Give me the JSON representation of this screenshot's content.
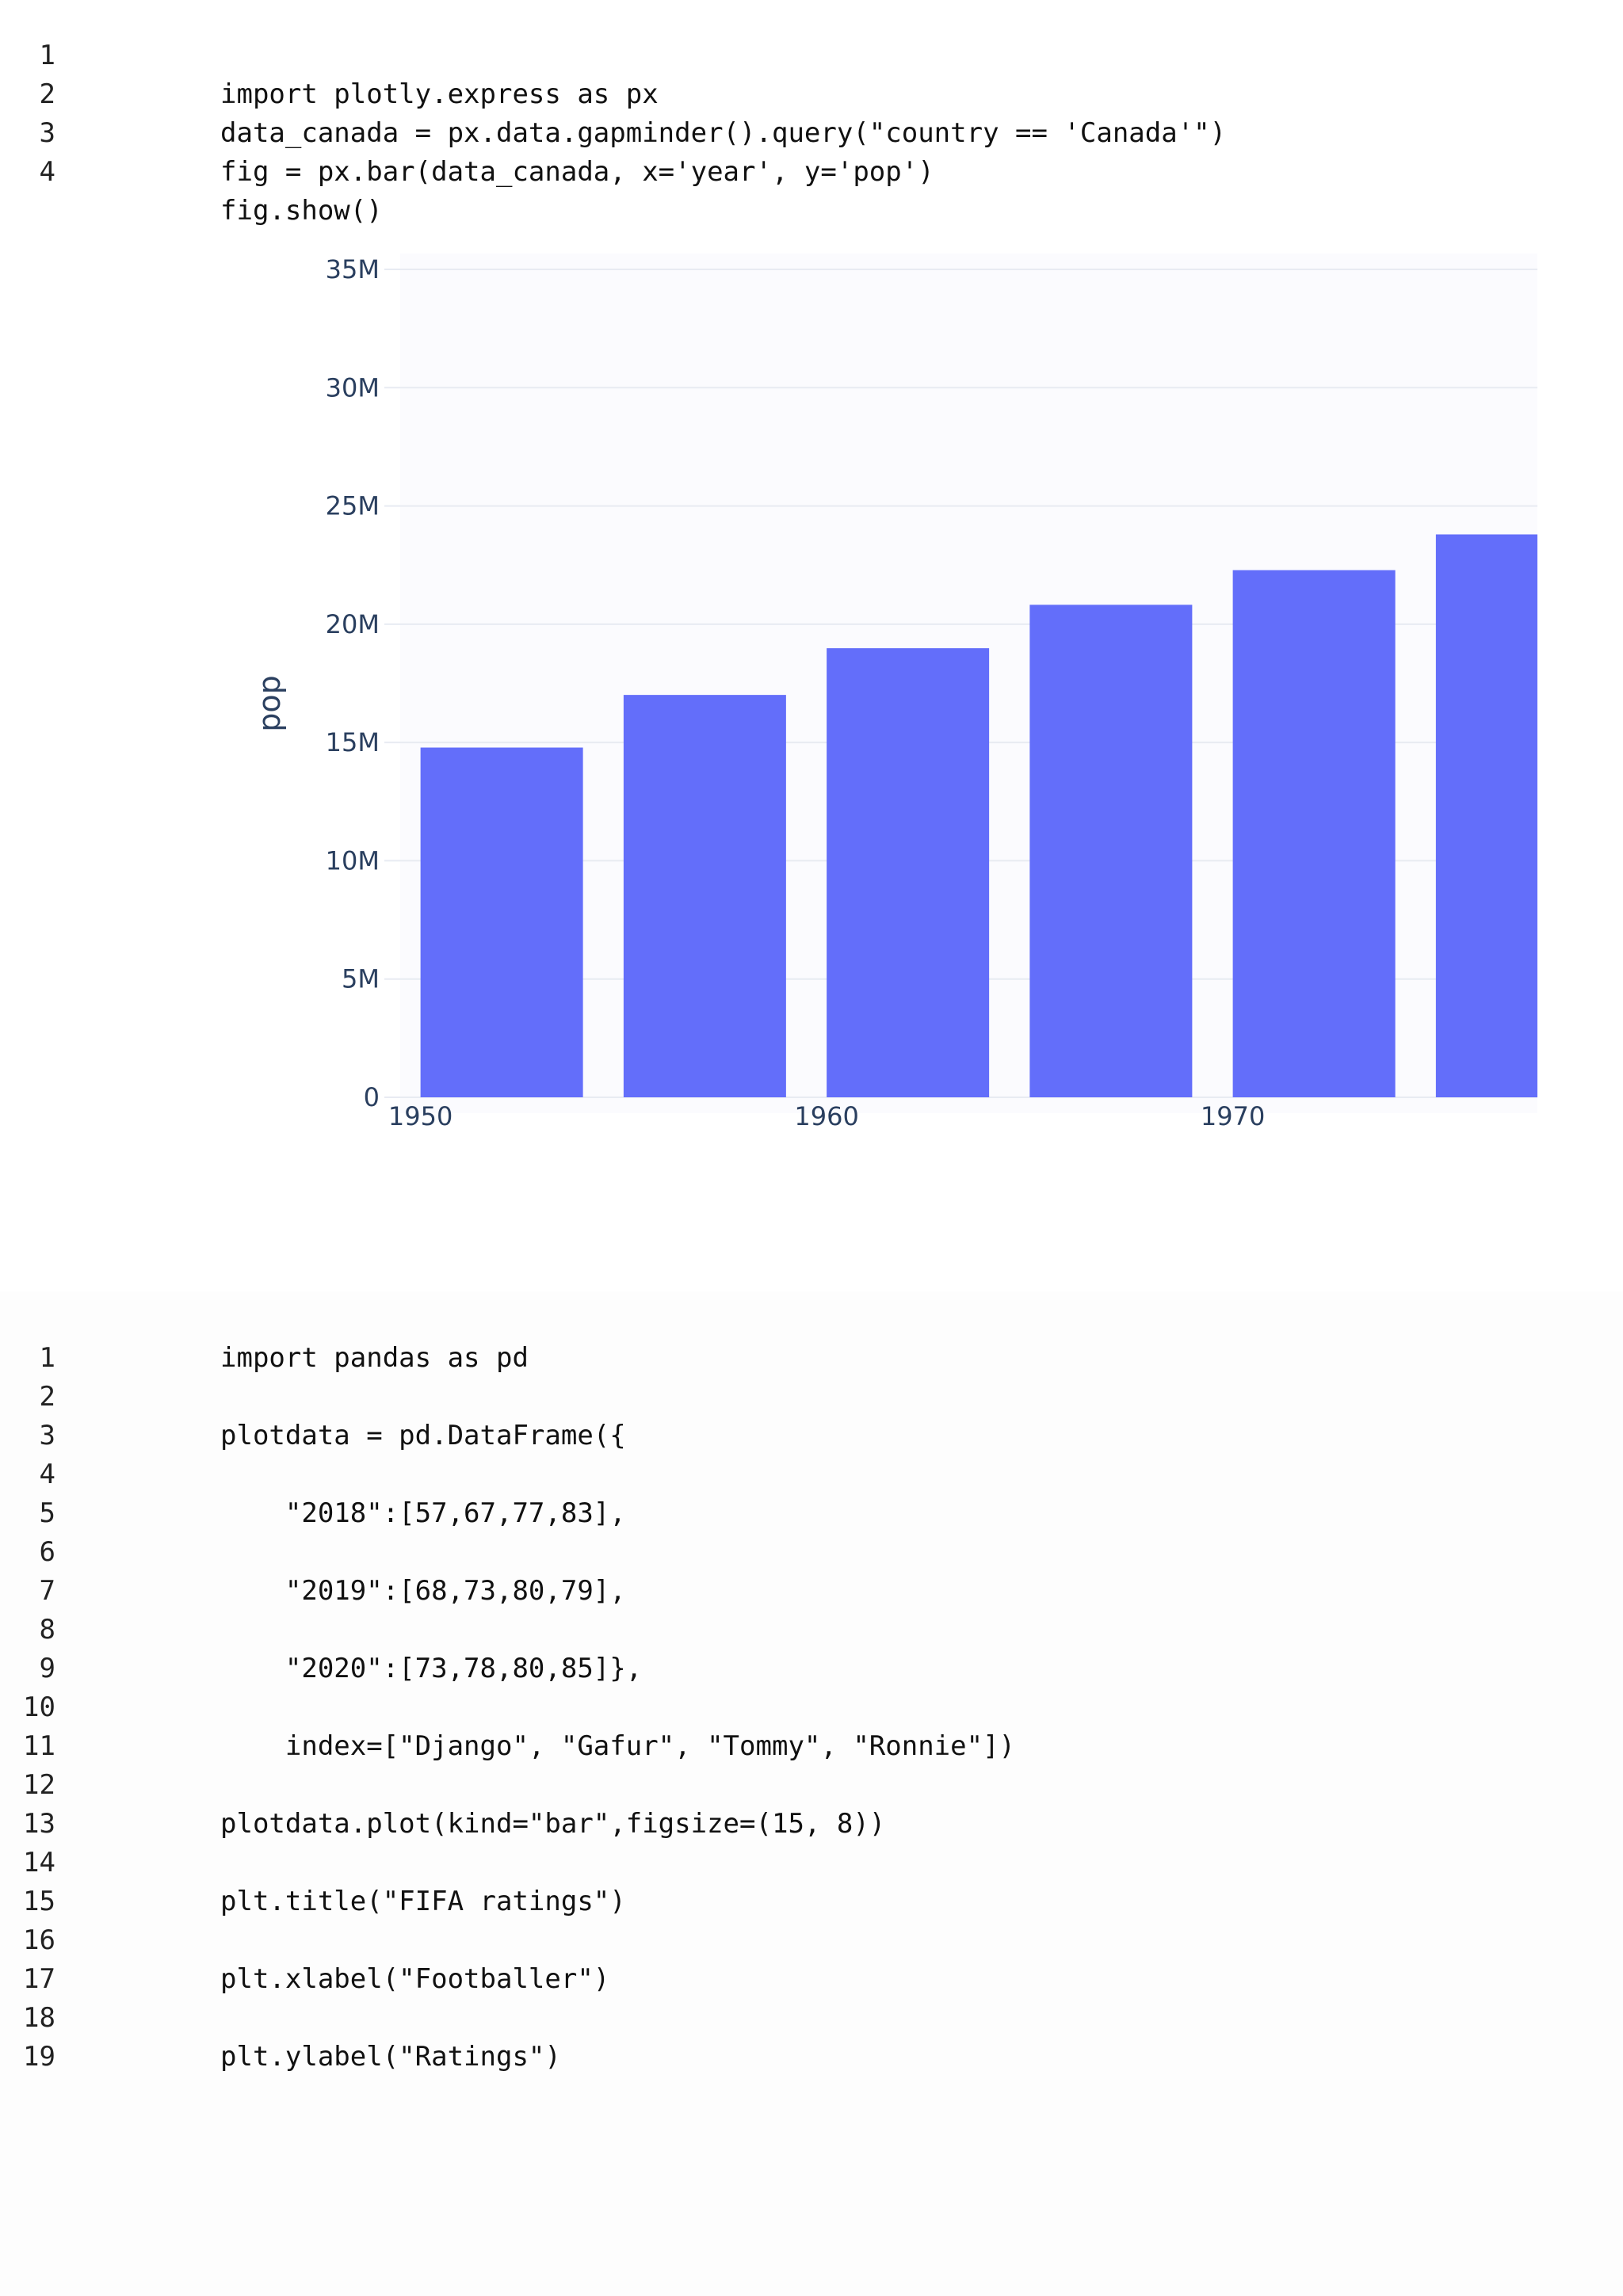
{
  "code_block_1": {
    "lines": [
      {
        "no": "1",
        "text": "import plotly.express as px"
      },
      {
        "no": "2",
        "text": "data_canada = px.data.gapminder().query(\"country == 'Canada'\")"
      },
      {
        "no": "3",
        "text": "fig = px.bar(data_canada, x='year', y='pop')"
      },
      {
        "no": "4",
        "text": "fig.show()"
      }
    ]
  },
  "chart_data": {
    "type": "bar",
    "ylabel": "pop",
    "xlabel": "",
    "categories": [
      1952,
      1957,
      1962,
      1967,
      1972,
      1977
    ],
    "values": [
      14785584,
      17010154,
      18985849,
      20819767,
      22284500,
      23796400
    ],
    "ylim": [
      0,
      35000000
    ],
    "xlim": [
      1949.5,
      1977.5
    ],
    "x_ticks": [
      {
        "value": 1950,
        "label": "1950"
      },
      {
        "value": 1960,
        "label": "1960"
      },
      {
        "value": 1970,
        "label": "1970"
      }
    ],
    "y_ticks": [
      {
        "value": 0,
        "label": "0"
      },
      {
        "value": 5000000,
        "label": "5M"
      },
      {
        "value": 10000000,
        "label": "10M"
      },
      {
        "value": 15000000,
        "label": "15M"
      },
      {
        "value": 20000000,
        "label": "20M"
      },
      {
        "value": 25000000,
        "label": "25M"
      },
      {
        "value": 30000000,
        "label": "30M"
      },
      {
        "value": 35000000,
        "label": "35M"
      }
    ],
    "grid": true,
    "bar_color": "#636efa",
    "plot_bg": "#fbfbfe",
    "grid_color": "#e8ebf2",
    "label_color": "#2a3f5f"
  },
  "code_block_2": {
    "lines": [
      {
        "no": "1",
        "text": "import pandas as pd"
      },
      {
        "no": "2",
        "text": ""
      },
      {
        "no": "3",
        "text": "plotdata = pd.DataFrame({"
      },
      {
        "no": "4",
        "text": ""
      },
      {
        "no": "5",
        "text": "    \"2018\":[57,67,77,83],"
      },
      {
        "no": "6",
        "text": ""
      },
      {
        "no": "7",
        "text": "    \"2019\":[68,73,80,79],"
      },
      {
        "no": "8",
        "text": ""
      },
      {
        "no": "9",
        "text": "    \"2020\":[73,78,80,85]},"
      },
      {
        "no": "10",
        "text": ""
      },
      {
        "no": "11",
        "text": "    index=[\"Django\", \"Gafur\", \"Tommy\", \"Ronnie\"])"
      },
      {
        "no": "12",
        "text": ""
      },
      {
        "no": "13",
        "text": "plotdata.plot(kind=\"bar\",figsize=(15, 8))"
      },
      {
        "no": "14",
        "text": ""
      },
      {
        "no": "15",
        "text": "plt.title(\"FIFA ratings\")"
      },
      {
        "no": "16",
        "text": ""
      },
      {
        "no": "17",
        "text": "plt.xlabel(\"Footballer\")"
      },
      {
        "no": "18",
        "text": ""
      },
      {
        "no": "19",
        "text": "plt.ylabel(\"Ratings\")"
      }
    ]
  }
}
